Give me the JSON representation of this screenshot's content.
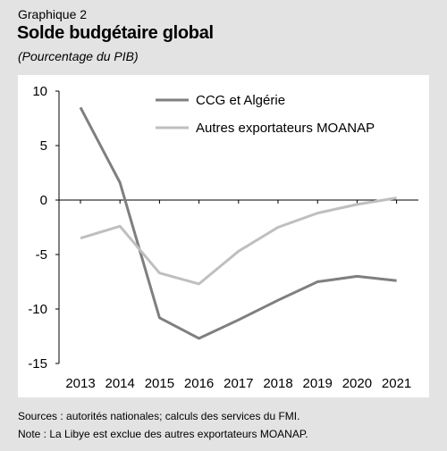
{
  "header": {
    "kicker": "Graphique 2",
    "title": "Solde budgétaire global",
    "subtitle": "(Pourcentage du PIB)"
  },
  "footer": {
    "sources": "Sources : autorités nationales; calculs des services du FMI.",
    "note": "Note : La Libye est exclue des autres exportateurs MOANAP."
  },
  "chart_data": {
    "type": "line",
    "title": "Solde budgétaire global",
    "subtitle": "(Pourcentage du PIB)",
    "xlabel": "",
    "ylabel": "",
    "x": [
      "2013",
      "2014",
      "2015",
      "2016",
      "2017",
      "2018",
      "2019",
      "2020",
      "2021"
    ],
    "ylim": [
      -15,
      10
    ],
    "yticks": [
      10,
      5,
      0,
      -5,
      -10,
      -15
    ],
    "grid": false,
    "legend_position": "top-right",
    "series": [
      {
        "name": "CCG et Algérie",
        "color": "#7f7f7f",
        "values": [
          8.5,
          1.6,
          -10.8,
          -12.7,
          -11.0,
          -9.2,
          -7.5,
          -7.0,
          -7.4
        ]
      },
      {
        "name": "Autres exportateurs MOANAP",
        "color": "#bfbfbf",
        "values": [
          -3.5,
          -2.4,
          -6.7,
          -7.7,
          -4.7,
          -2.5,
          -1.2,
          -0.4,
          0.2
        ]
      }
    ]
  }
}
